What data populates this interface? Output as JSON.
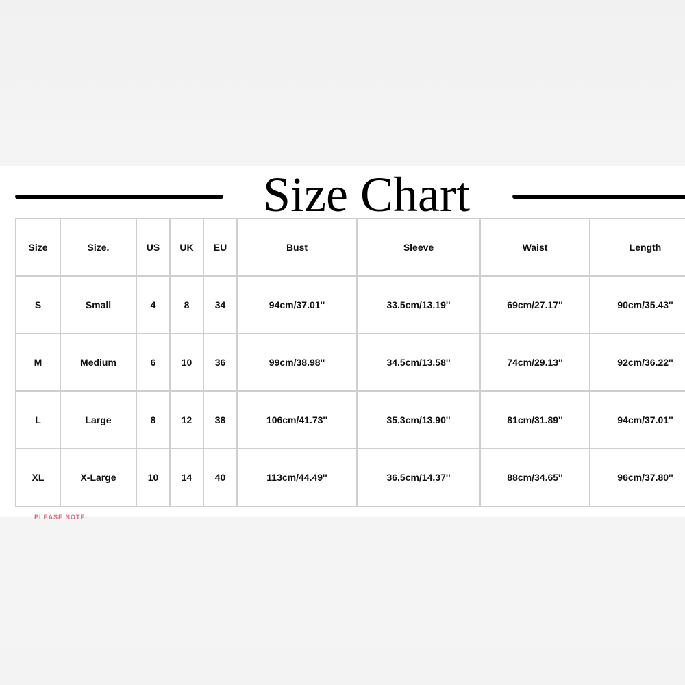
{
  "title": "Size Chart",
  "columns": [
    "Size",
    "Size.",
    "US",
    "UK",
    "EU",
    "Bust",
    "Sleeve",
    "Waist",
    "Length"
  ],
  "rows": [
    [
      "S",
      "Small",
      "4",
      "8",
      "34",
      "94cm/37.01''",
      "33.5cm/13.19''",
      "69cm/27.17''",
      "90cm/35.43''"
    ],
    [
      "M",
      "Medium",
      "6",
      "10",
      "36",
      "99cm/38.98''",
      "34.5cm/13.58''",
      "74cm/29.13''",
      "92cm/36.22''"
    ],
    [
      "L",
      "Large",
      "8",
      "12",
      "38",
      "106cm/41.73''",
      "35.3cm/13.90''",
      "81cm/31.89''",
      "94cm/37.01''"
    ],
    [
      "XL",
      "X-Large",
      "10",
      "14",
      "40",
      "113cm/44.49''",
      "36.5cm/14.37''",
      "88cm/34.65''",
      "96cm/37.80''"
    ]
  ],
  "note": "PLEASE NOTE:",
  "colors": {
    "note": "#c0334b",
    "border": "#cfcfcf"
  }
}
